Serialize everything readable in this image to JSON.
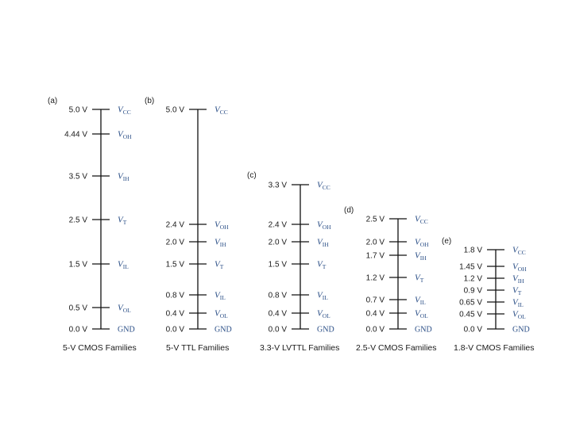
{
  "colors": {
    "signal": "#2a4e86",
    "text": "#1a1a1a",
    "line": "#111111"
  },
  "families": [
    {
      "tag": "(a)",
      "caption": "5-V CMOS Families",
      "levels": [
        {
          "volt": "5.0 V",
          "sig": "V",
          "sub": "CC"
        },
        {
          "volt": "4.44 V",
          "sig": "V",
          "sub": "OH"
        },
        {
          "volt": "3.5 V",
          "sig": "V",
          "sub": "IH"
        },
        {
          "volt": "2.5 V",
          "sig": "V",
          "sub": "T"
        },
        {
          "volt": "1.5 V",
          "sig": "V",
          "sub": "IL"
        },
        {
          "volt": "0.5 V",
          "sig": "V",
          "sub": "OL"
        },
        {
          "volt": "0.0 V",
          "gnd": "GND"
        }
      ]
    },
    {
      "tag": "(b)",
      "caption": "5-V TTL Families",
      "levels": [
        {
          "volt": "5.0 V",
          "sig": "V",
          "sub": "CC"
        },
        {
          "volt": "2.4 V",
          "sig": "V",
          "sub": "OH"
        },
        {
          "volt": "2.0 V",
          "sig": "V",
          "sub": "IH"
        },
        {
          "volt": "1.5 V",
          "sig": "V",
          "sub": "T"
        },
        {
          "volt": "0.8 V",
          "sig": "V",
          "sub": "IL"
        },
        {
          "volt": "0.4 V",
          "sig": "V",
          "sub": "OL"
        },
        {
          "volt": "0.0 V",
          "gnd": "GND"
        }
      ]
    },
    {
      "tag": "(c)",
      "caption": "3.3-V LVTTL Families",
      "levels": [
        {
          "volt": "3.3 V",
          "sig": "V",
          "sub": "CC"
        },
        {
          "volt": "2.4 V",
          "sig": "V",
          "sub": "OH"
        },
        {
          "volt": "2.0 V",
          "sig": "V",
          "sub": "IH"
        },
        {
          "volt": "1.5 V",
          "sig": "V",
          "sub": "T"
        },
        {
          "volt": "0.8 V",
          "sig": "V",
          "sub": "IL"
        },
        {
          "volt": "0.4 V",
          "sig": "V",
          "sub": "OL"
        },
        {
          "volt": "0.0 V",
          "gnd": "GND"
        }
      ]
    },
    {
      "tag": "(d)",
      "caption": "2.5-V CMOS Families",
      "levels": [
        {
          "volt": "2.5 V",
          "sig": "V",
          "sub": "CC"
        },
        {
          "volt": "2.0 V",
          "sig": "V",
          "sub": "OH"
        },
        {
          "volt": "1.7 V",
          "sig": "V",
          "sub": "IH"
        },
        {
          "volt": "1.2 V",
          "sig": "V",
          "sub": "T"
        },
        {
          "volt": "0.7 V",
          "sig": "V",
          "sub": "IL"
        },
        {
          "volt": "0.4 V",
          "sig": "V",
          "sub": "OL"
        },
        {
          "volt": "0.0 V",
          "gnd": "GND"
        }
      ]
    },
    {
      "tag": "(e)",
      "caption": "1.8-V CMOS Families",
      "levels": [
        {
          "volt": "1.8 V",
          "sig": "V",
          "sub": "CC"
        },
        {
          "volt": "1.45 V",
          "sig": "V",
          "sub": "OH"
        },
        {
          "volt": "1.2 V",
          "sig": "V",
          "sub": "IH"
        },
        {
          "volt": "0.9 V",
          "sig": "V",
          "sub": "T"
        },
        {
          "volt": "0.65 V",
          "sig": "V",
          "sub": "IL"
        },
        {
          "volt": "0.45 V",
          "sig": "V",
          "sub": "OL"
        },
        {
          "volt": "0.0 V",
          "gnd": "GND"
        }
      ]
    }
  ]
}
